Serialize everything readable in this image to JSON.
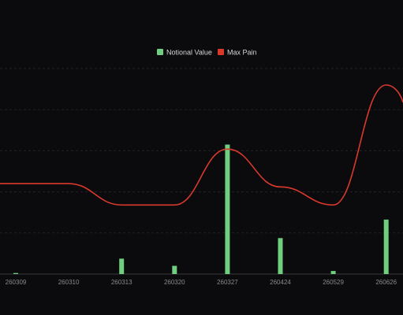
{
  "chart_data": {
    "type": "bar",
    "categories": [
      "260309",
      "260310",
      "260313",
      "260320",
      "260327",
      "260424",
      "260529",
      "260626"
    ],
    "series": [
      {
        "name": "Notional Value",
        "type": "bar",
        "color": "#6fcf7f",
        "values": [
          0.5,
          0,
          7.5,
          4,
          63,
          17.5,
          1.5,
          26.5
        ]
      },
      {
        "name": "Max Pain",
        "type": "line",
        "smooth": true,
        "color": "#d9392b",
        "values": [
          55,
          55,
          42,
          42,
          76,
          53,
          42,
          115
        ]
      }
    ],
    "y_left_lim": [
      0,
      100
    ],
    "y_right_lim": [
      0,
      125
    ],
    "grid": "horizontal-dashed",
    "legend_position": "top-center",
    "axis_labels_visible": false
  }
}
